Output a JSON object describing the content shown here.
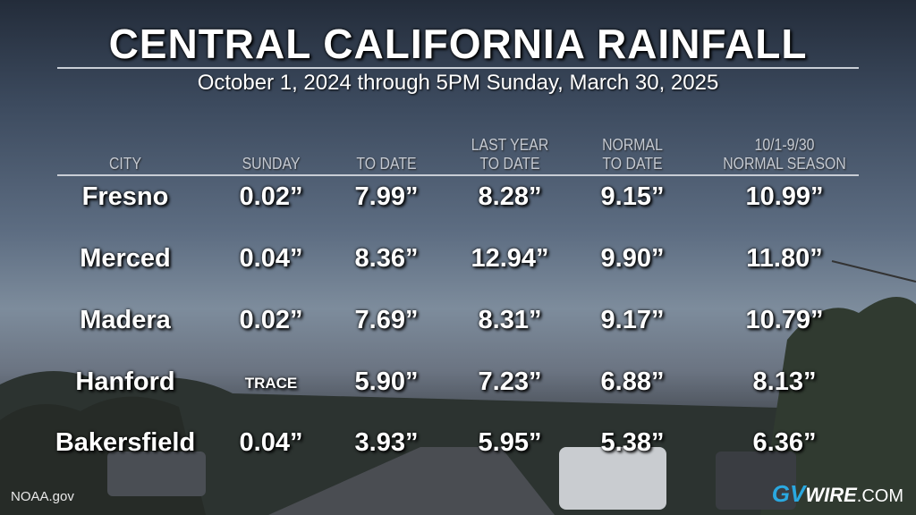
{
  "header": {
    "title": "CENTRAL CALIFORNIA RAINFALL",
    "subtitle": "October 1, 2024 through 5PM Sunday, March 30, 2025"
  },
  "table": {
    "headers": [
      [
        "CITY"
      ],
      [
        "SUNDAY"
      ],
      [
        "TO DATE"
      ],
      [
        "LAST YEAR",
        "TO DATE"
      ],
      [
        "NORMAL",
        "TO DATE"
      ],
      [
        "10/1-9/30",
        "NORMAL SEASON"
      ]
    ],
    "rows": [
      [
        "Fresno",
        "0.02”",
        "7.99”",
        "8.28”",
        "9.15”",
        "10.99”"
      ],
      [
        "Merced",
        "0.04”",
        "8.36”",
        "12.94”",
        "9.90”",
        "11.80”"
      ],
      [
        "Madera",
        "0.02”",
        "7.69”",
        "8.31”",
        "9.17”",
        "10.79”"
      ],
      [
        "Hanford",
        "TRACE",
        "5.90”",
        "7.23”",
        "6.88”",
        "8.13”"
      ],
      [
        "Bakersfield",
        "0.04”",
        "3.93”",
        "5.95”",
        "5.38”",
        "6.36”"
      ]
    ]
  },
  "footer": {
    "source": "NOAA.gov",
    "logo": [
      "GV",
      "WIRE",
      ".COM"
    ]
  }
}
